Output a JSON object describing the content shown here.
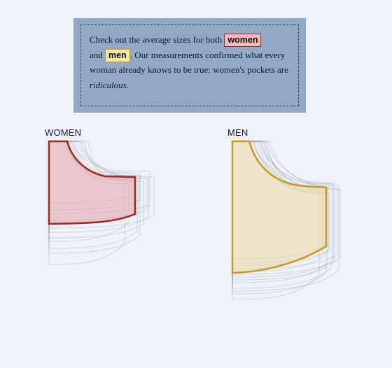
{
  "callout": {
    "text_before": "Check out the average sizes for both ",
    "women_chip": "women",
    "text_and": "and ",
    "men_chip": "men",
    "text_middle": ". Our measurements confirmed what every woman already knows to be true: women's pockets are ",
    "text_italic": "ridiculous",
    "text_end": "."
  },
  "women": {
    "label": "WOMEN",
    "outline_color": "#a0281e",
    "fill_color": "#e6a2ab"
  },
  "men": {
    "label": "MEN",
    "outline_color": "#c99a1e",
    "fill_color": "#efd9a6"
  },
  "ghost_color": "#3a4a5e"
}
